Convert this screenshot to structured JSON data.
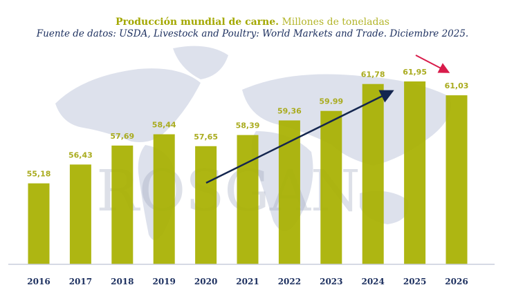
{
  "chart_data": {
    "type": "bar",
    "title": "Producción mundial de carne.",
    "subtitle_units": "Millones de toneladas",
    "source": "Fuente de datos: USDA, Livestock and Poultry: World Markets and Trade. Diciembre 2025.",
    "categories": [
      "2016",
      "2017",
      "2018",
      "2019",
      "2020",
      "2021",
      "2022",
      "2023",
      "2024",
      "2025",
      "2026"
    ],
    "values": [
      55.18,
      56.43,
      57.69,
      58.44,
      57.65,
      58.39,
      59.36,
      59.99,
      61.78,
      61.95,
      61.03
    ],
    "value_labels": [
      "55,18",
      "56,43",
      "57,69",
      "58,44",
      "57,65",
      "58,39",
      "59,36",
      "59.99",
      "61,78",
      "61,95",
      "61,03"
    ],
    "ylim": [
      49.8,
      62.5
    ],
    "grid": false,
    "legend": "none",
    "annotations": [
      "trend-arrow-up 2020→2024",
      "decline-arrow 2025→2026"
    ],
    "watermark": "ROSGAN",
    "colors": {
      "bar": "#a8b000",
      "value_label": "#a9ab1e",
      "year_label": "#1e3160",
      "trend_arrow": "#14264f",
      "decline_arrow": "#d81b4a",
      "axis": "#c9cedb",
      "map": "#d9dde8"
    }
  }
}
